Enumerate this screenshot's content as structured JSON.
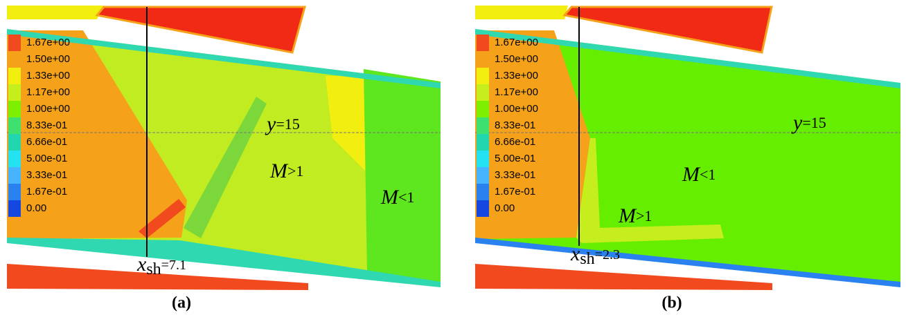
{
  "legend_colors": [
    "#f04a1e",
    "#f5a21a",
    "#f2ee10",
    "#c6ee1c",
    "#7cf000",
    "#3ee070",
    "#22d6b0",
    "#24e2f2",
    "#46b4ff",
    "#2a82f0",
    "#1448e0"
  ],
  "panels": [
    {
      "caption": "(a)",
      "legend": [
        "1.67e+00",
        "1.50e+00",
        "1.33e+00",
        "1.17e+00",
        "1.00e+00",
        "8.33e-01",
        "6.66e-01",
        "5.00e-01",
        "3.33e-01",
        "1.67e-01",
        "0.00"
      ],
      "annotations": [
        {
          "symbol": "y",
          "text": "=15"
        },
        {
          "symbol": "M",
          "text": ">1"
        },
        {
          "symbol": "M",
          "text": "<1"
        },
        {
          "symbol": "x",
          "subscript": "sh",
          "text": "=7.1"
        }
      ]
    },
    {
      "caption": "(b)",
      "legend": [
        "1.67e+00",
        "1.50e+00",
        "1.33e+00",
        "1.17e+00",
        "1.00e+00",
        "8.33e-01",
        "6.66e-01",
        "5.00e-01",
        "3.33e-01",
        "1.67e-01",
        "0.00"
      ],
      "annotations": [
        {
          "symbol": "y",
          "text": "=15"
        },
        {
          "symbol": "M",
          "text": "<1"
        },
        {
          "symbol": "M",
          "text": ">1"
        },
        {
          "symbol": "x",
          "subscript": "sh",
          "text": "=2.3"
        }
      ]
    }
  ]
}
